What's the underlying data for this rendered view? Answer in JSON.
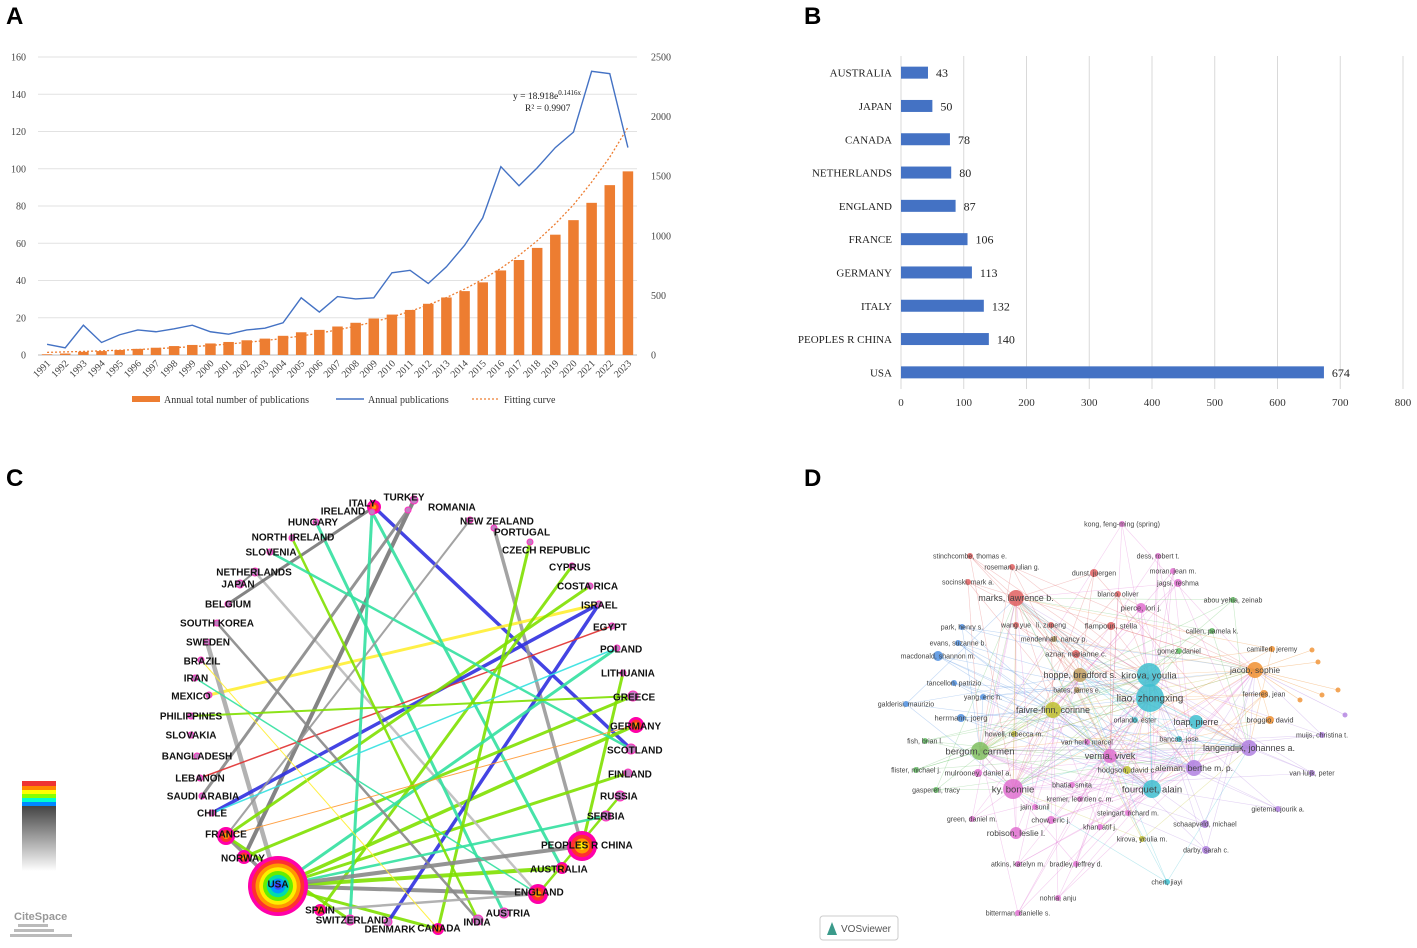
{
  "panels": {
    "a": "A",
    "b": "B",
    "c": "C",
    "d": "D"
  },
  "chart_data": [
    {
      "panel": "A",
      "type": "bar+line",
      "categories": [
        "1991",
        "1992",
        "1993",
        "1994",
        "1995",
        "1996",
        "1997",
        "1998",
        "1999",
        "2000",
        "2001",
        "2002",
        "2003",
        "2004",
        "2005",
        "2006",
        "2007",
        "2008",
        "2009",
        "2010",
        "2011",
        "2012",
        "2013",
        "2014",
        "2015",
        "2016",
        "2017",
        "2018",
        "2019",
        "2020",
        "2021",
        "2022",
        "2023"
      ],
      "series": [
        {
          "name": "Annual total number of publications",
          "type": "bar",
          "axis": "left",
          "color": "#ED7D31",
          "values": [
            0.4,
            0.8,
            1.7,
            2.1,
            2.7,
            3.3,
            3.9,
            4.8,
            5.4,
            6.2,
            7.0,
            7.9,
            8.8,
            10.3,
            12.2,
            13.5,
            15.3,
            17.3,
            19.6,
            21.7,
            24.2,
            27.5,
            30.9,
            34.3,
            39.0,
            45.4,
            51.0,
            57.5,
            64.6,
            72.4,
            81.7,
            91.2,
            98.6
          ]
        },
        {
          "name": "Annual publications",
          "type": "line",
          "axis": "right",
          "color": "#4472C4",
          "values": [
            90,
            60,
            250,
            105,
            170,
            210,
            195,
            220,
            250,
            195,
            175,
            210,
            225,
            270,
            480,
            360,
            490,
            470,
            480,
            690,
            710,
            600,
            740,
            920,
            1150,
            1580,
            1420,
            1570,
            1740,
            1870,
            2380,
            2360,
            1740
          ]
        },
        {
          "name": "Fitting curve",
          "type": "dotted",
          "axis": "right",
          "color": "#ED7D31",
          "values": [
            22,
            26,
            30,
            35,
            40,
            46,
            53,
            61,
            70,
            80,
            92,
            106,
            121,
            139,
            160,
            183,
            211,
            242,
            278,
            319,
            366,
            420,
            482,
            553,
            634,
            727,
            835,
            958,
            1100,
            1260,
            1450,
            1660,
            1910
          ]
        }
      ],
      "ylim_left": [
        0,
        160
      ],
      "yticks_left": [
        0,
        20,
        40,
        60,
        80,
        100,
        120,
        140,
        160
      ],
      "ylim_right": [
        0,
        2500
      ],
      "yticks_right": [
        0,
        500,
        1000,
        1500,
        2000,
        2500
      ],
      "equation": "y = 18.918e",
      "equation_exp": "0.1416x",
      "r_squared": "R² = 0.9907",
      "legend": [
        "Annual total number of publications",
        "Annual publications",
        "Fitting curve"
      ]
    },
    {
      "panel": "B",
      "type": "bar",
      "orientation": "horizontal",
      "categories": [
        "AUSTRALIA",
        "JAPAN",
        "CANADA",
        "NETHERLANDS",
        "ENGLAND",
        "FRANCE",
        "GERMANY",
        "ITALY",
        "PEOPLES R CHINA",
        "USA"
      ],
      "values": [
        43,
        50,
        78,
        80,
        87,
        106,
        113,
        132,
        140,
        674
      ],
      "xlim": [
        0,
        800
      ],
      "xticks": [
        0,
        100,
        200,
        300,
        400,
        500,
        600,
        700,
        800
      ],
      "color": "#4472C4"
    }
  ],
  "network_c": {
    "countries": [
      "TURKEY",
      "ITALY",
      "ROMANIA",
      "IRELAND",
      "NEW ZEALAND",
      "HUNGARY",
      "PORTUGAL",
      "NORTH IRELAND",
      "SLOVENIA",
      "CZECH REPUBLIC",
      "CYPRUS",
      "NETHERLANDS",
      "JAPAN",
      "COSTA RICA",
      "BELGIUM",
      "ISRAEL",
      "SOUTH KOREA",
      "EGYPT",
      "SWEDEN",
      "POLAND",
      "BRAZIL",
      "LITHUANIA",
      "IRAN",
      "MEXICO",
      "GREECE",
      "PHILIPPINES",
      "GERMANY",
      "SLOVAKIA",
      "SCOTLAND",
      "BANGLADESH",
      "FINLAND",
      "LEBANON",
      "RUSSIA",
      "SAUDI ARABIA",
      "SERBIA",
      "CHILE",
      "FRANCE",
      "PEOPLES R CHINA",
      "NORWAY",
      "AUSTRALIA",
      "USA",
      "ENGLAND",
      "SPAIN",
      "AUSTRIA",
      "SWITZERLAND",
      "INDIA",
      "DENMARK",
      "CANADA"
    ],
    "logo": "CiteSpace"
  },
  "network_d": {
    "authors": [
      "kong, feng-ming (spring)",
      "stinchcombe, thomas e.",
      "dess, robert t.",
      "roseman, julian g.",
      "dunst, juergen",
      "moran, jean m.",
      "socinski, mark a.",
      "jagsi, reshma",
      "marks, lawrence b.",
      "blanco, oliver",
      "abou yehia, zeinab",
      "pierce, lori j.",
      "park, henry s.",
      "wang yue",
      "li, zupeng",
      "flampouri, stella",
      "callen, pamela k.",
      "evans, suzanne b.",
      "mendenhall, nancy p.",
      "camilleri, jeremy",
      "macdonald, shannon m.",
      "gomez, daniel",
      "aznar, marianne c.",
      "kirova, youlia",
      "jacob, sophie",
      "hoppe, bradford s.",
      "tancellon, patrizio",
      "yang, eric h.",
      "liao, zhongxing",
      "ferrieres, jean",
      "bates, james e.",
      "galderisi, maurizio",
      "herrmann, joerg",
      "faivre-finn, corinne",
      "orlando, ester",
      "loap, pierre",
      "broggio, david",
      "howell, rebecca m.",
      "fish, brian l.",
      "muijs, christina t.",
      "bancos, jose",
      "van herk, marcel",
      "langendijk, johannes a.",
      "bergom, carmen",
      "verma, vivek",
      "flister, michael j.",
      "mulrooney, daniel a.",
      "hodgson, david c.",
      "aleman, berthe m. p.",
      "van luijk, peter",
      "ky, bonnie",
      "bhatia, smita",
      "gaspereti, tracy",
      "fourquet, alain",
      "kremer, leontien c. m.",
      "jain, sunil",
      "gietema, jourik a.",
      "steingart, richard m.",
      "green, daniel m.",
      "chow, eric j.",
      "schaapveld, michael",
      "robison, leslie l.",
      "khan, atif j.",
      "darby, sarah c.",
      "kirova, youlia m.",
      "atkins, katelyn m.",
      "bradley, jeffrey d.",
      "chen, jiayi",
      "nohria, anju",
      "bitterman, danielle s."
    ],
    "logo": "VOSviewer"
  }
}
